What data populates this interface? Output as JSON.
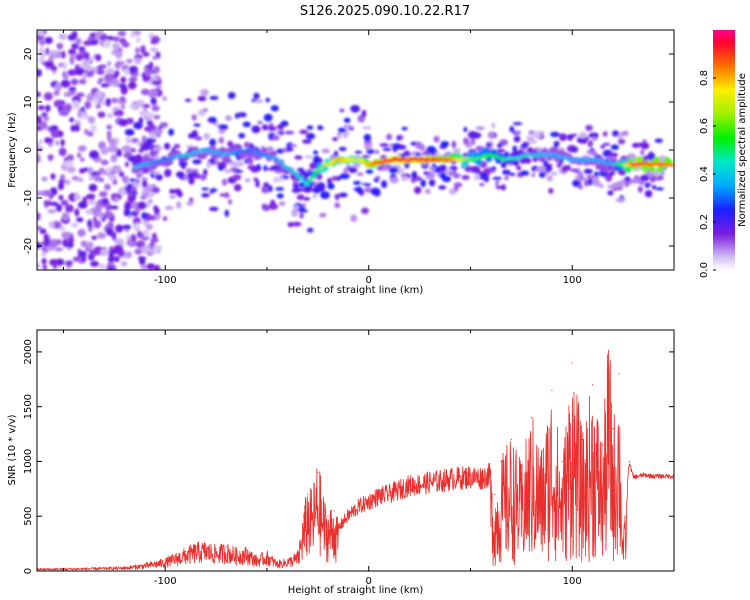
{
  "title": "S126.2025.090.10.22.R17",
  "chart_data": [
    {
      "type": "heatmap",
      "xlabel": "Height of straight line (km)",
      "ylabel": "Frequency (Hz)",
      "xlim": [
        -163,
        150
      ],
      "ylim": [
        -25,
        25
      ],
      "xticks": [
        -100,
        0,
        100
      ],
      "yticks": [
        -20,
        -10,
        0,
        10,
        20
      ],
      "colorbar": {
        "label": "Normalized spectral amplitude",
        "range": [
          0,
          1
        ],
        "ticks": [
          0.0,
          0.2,
          0.4,
          0.6,
          0.8
        ],
        "colormap": "rainbow"
      },
      "ridge": [
        {
          "x": -110,
          "y": -3,
          "amp": 0.35
        },
        {
          "x": -100,
          "y": -2,
          "amp": 0.3
        },
        {
          "x": -90,
          "y": -1,
          "amp": 0.4
        },
        {
          "x": -80,
          "y": 0,
          "amp": 0.35
        },
        {
          "x": -70,
          "y": -1,
          "amp": 0.35
        },
        {
          "x": -60,
          "y": 0,
          "amp": 0.3
        },
        {
          "x": -45,
          "y": -2,
          "amp": 0.35
        },
        {
          "x": -30,
          "y": -7,
          "amp": 0.45
        },
        {
          "x": -25,
          "y": -4,
          "amp": 0.6
        },
        {
          "x": -15,
          "y": -2,
          "amp": 0.8
        },
        {
          "x": -5,
          "y": -2,
          "amp": 0.7
        },
        {
          "x": 0,
          "y": -3,
          "amp": 0.8
        },
        {
          "x": 10,
          "y": -2,
          "amp": 0.95
        },
        {
          "x": 20,
          "y": -2,
          "amp": 0.95
        },
        {
          "x": 30,
          "y": -2,
          "amp": 0.9
        },
        {
          "x": 40,
          "y": -2,
          "amp": 0.85
        },
        {
          "x": 50,
          "y": -2,
          "amp": 0.6
        },
        {
          "x": 60,
          "y": -1,
          "amp": 0.55
        },
        {
          "x": 70,
          "y": -2,
          "amp": 0.45
        },
        {
          "x": 80,
          "y": -1,
          "amp": 0.4
        },
        {
          "x": 90,
          "y": -1,
          "amp": 0.35
        },
        {
          "x": 100,
          "y": -2,
          "amp": 0.35
        },
        {
          "x": 110,
          "y": -2,
          "amp": 0.35
        },
        {
          "x": 120,
          "y": -3,
          "amp": 0.35
        },
        {
          "x": 130,
          "y": -3,
          "amp": 0.9
        },
        {
          "x": 145,
          "y": -3,
          "amp": 0.85
        }
      ]
    },
    {
      "type": "line",
      "xlabel": "Height of straight line (km)",
      "ylabel": "SNR (10 * v/v)",
      "xlim": [
        -163,
        150
      ],
      "ylim": [
        0,
        2200
      ],
      "xticks": [
        -100,
        0,
        100
      ],
      "yticks": [
        0,
        500,
        1000,
        1500,
        2000
      ],
      "series": [
        {
          "color": "#e8302e",
          "x": [
            -163,
            -140,
            -120,
            -110,
            -100,
            -90,
            -85,
            -80,
            -75,
            -70,
            -65,
            -60,
            -55,
            -50,
            -45,
            -40,
            -35,
            -32,
            -30,
            -28,
            -25,
            -22,
            -20,
            -17,
            -15,
            -10,
            -5,
            0,
            5,
            10,
            15,
            20,
            25,
            30,
            35,
            40,
            45,
            50,
            55,
            60,
            62,
            65,
            70,
            75,
            80,
            85,
            90,
            95,
            100,
            105,
            110,
            115,
            118,
            120,
            123,
            125,
            128,
            130,
            135,
            140,
            150
          ],
          "y": [
            20,
            25,
            35,
            60,
            100,
            180,
            220,
            230,
            200,
            220,
            180,
            190,
            120,
            160,
            80,
            100,
            150,
            500,
            700,
            650,
            900,
            600,
            500,
            550,
            400,
            520,
            600,
            650,
            700,
            720,
            760,
            800,
            810,
            830,
            840,
            860,
            870,
            880,
            870,
            900,
            700,
            1000,
            1200,
            950,
            1400,
            1100,
            1650,
            1000,
            1900,
            1200,
            1700,
            1150,
            2200,
            1300,
            1800,
            300,
            1000,
            860,
            880,
            870,
            870
          ]
        }
      ]
    }
  ]
}
